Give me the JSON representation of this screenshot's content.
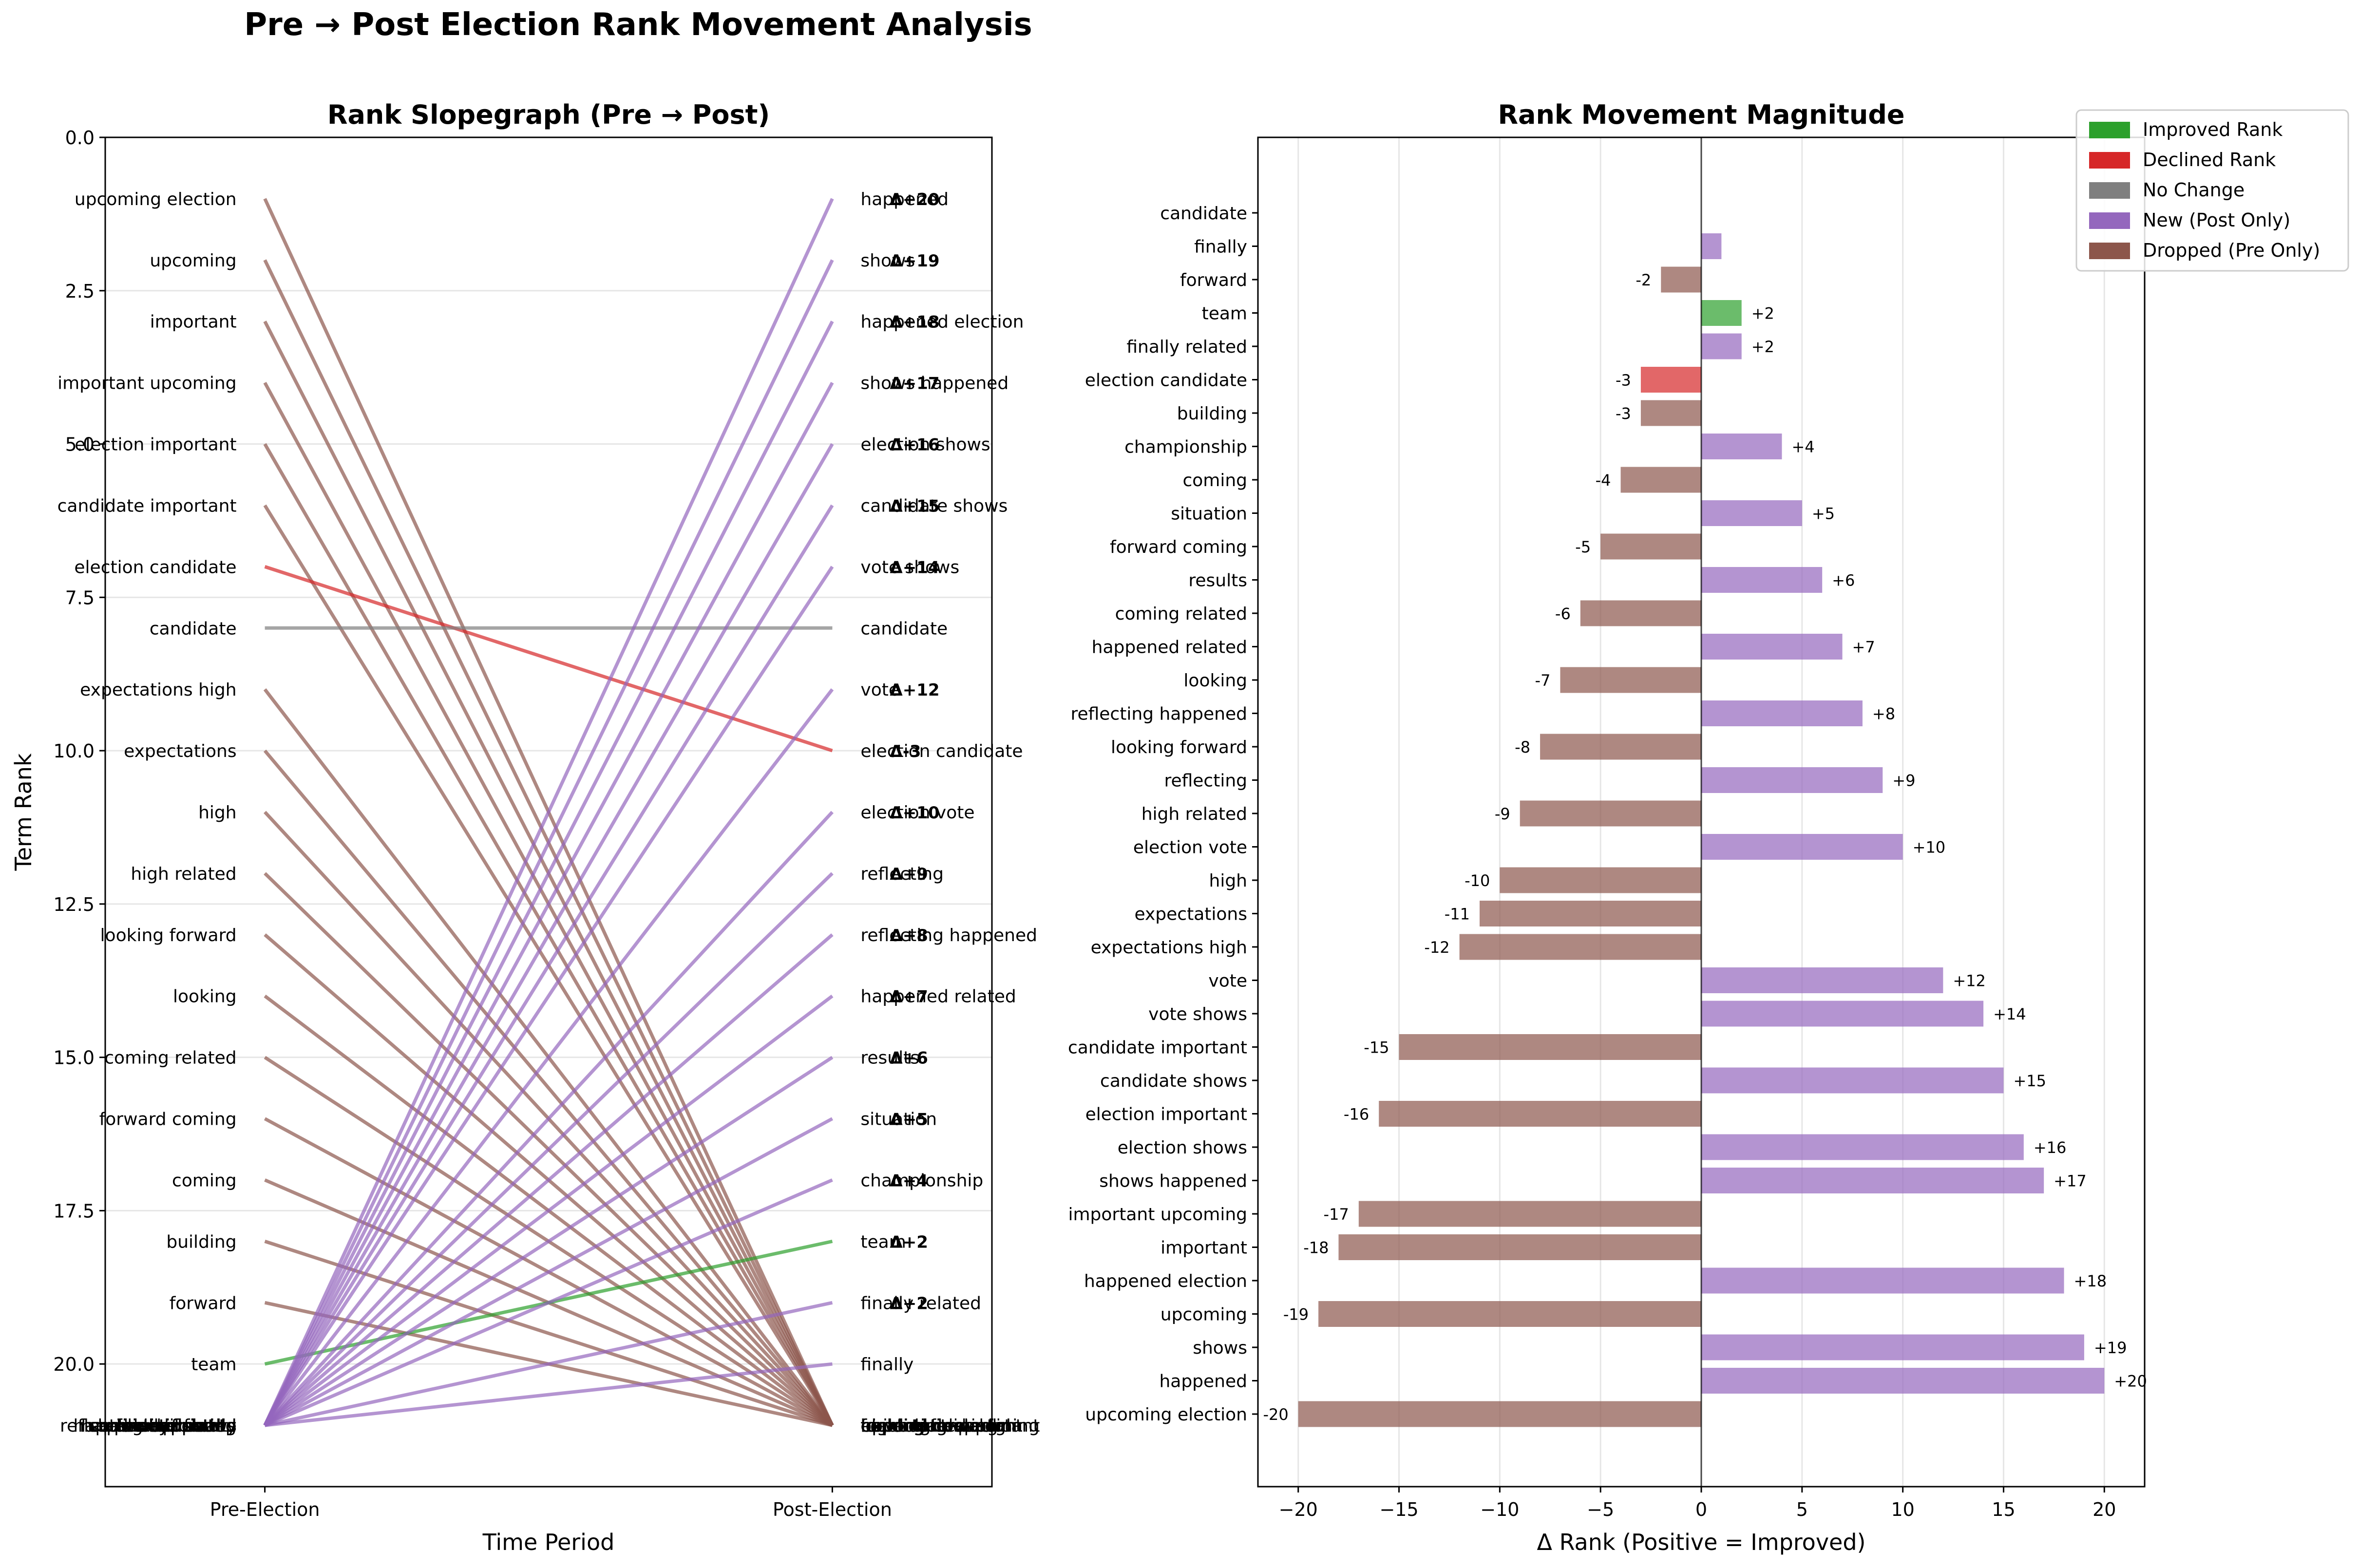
{
  "figure": {
    "title": "Pre → Post Election Rank Movement Analysis"
  },
  "colors": {
    "improved": "#2ca02c",
    "declined": "#d62728",
    "no_change": "#7f7f7f",
    "new": "#9467bd",
    "dropped": "#8c564b",
    "grid": "#e6e6e6"
  },
  "legend": {
    "placement": "top-right",
    "items": [
      {
        "key": "improved",
        "label": "Improved Rank"
      },
      {
        "key": "declined",
        "label": "Declined Rank"
      },
      {
        "key": "no_change",
        "label": "No Change"
      },
      {
        "key": "new",
        "label": "New (Post Only)"
      },
      {
        "key": "dropped",
        "label": "Dropped (Pre Only)"
      }
    ]
  },
  "chart_data": [
    {
      "type": "line",
      "subtype": "slopegraph",
      "title": "Rank Slopegraph (Pre → Post)",
      "xlabel": "Time Period",
      "ylabel": "Term Rank",
      "x_categories": [
        "Pre-Election",
        "Post-Election"
      ],
      "ylim": [
        22,
        0
      ],
      "y_ticks": [
        "0.0",
        "2.5",
        "5.0",
        "7.5",
        "10.0",
        "12.5",
        "15.0",
        "17.5",
        "20.0"
      ],
      "grid": "horizontal",
      "missing_rank": 21,
      "terms": [
        {
          "term": "upcoming election",
          "pre": 1,
          "post": null,
          "status": "dropped"
        },
        {
          "term": "upcoming",
          "pre": 2,
          "post": null,
          "status": "dropped"
        },
        {
          "term": "important",
          "pre": 3,
          "post": null,
          "status": "dropped"
        },
        {
          "term": "important upcoming",
          "pre": 4,
          "post": null,
          "status": "dropped"
        },
        {
          "term": "election important",
          "pre": 5,
          "post": null,
          "status": "dropped"
        },
        {
          "term": "candidate important",
          "pre": 6,
          "post": null,
          "status": "dropped"
        },
        {
          "term": "election candidate",
          "pre": 7,
          "post": 10,
          "status": "declined",
          "delta_label": "Δ-3"
        },
        {
          "term": "candidate",
          "pre": 8,
          "post": 8,
          "status": "no_change"
        },
        {
          "term": "expectations high",
          "pre": 9,
          "post": null,
          "status": "dropped"
        },
        {
          "term": "expectations",
          "pre": 10,
          "post": null,
          "status": "dropped"
        },
        {
          "term": "high",
          "pre": 11,
          "post": null,
          "status": "dropped"
        },
        {
          "term": "high related",
          "pre": 12,
          "post": null,
          "status": "dropped"
        },
        {
          "term": "looking forward",
          "pre": 13,
          "post": null,
          "status": "dropped"
        },
        {
          "term": "looking",
          "pre": 14,
          "post": null,
          "status": "dropped"
        },
        {
          "term": "coming related",
          "pre": 15,
          "post": null,
          "status": "dropped"
        },
        {
          "term": "forward coming",
          "pre": 16,
          "post": null,
          "status": "dropped"
        },
        {
          "term": "coming",
          "pre": 17,
          "post": null,
          "status": "dropped"
        },
        {
          "term": "building",
          "pre": 18,
          "post": null,
          "status": "dropped"
        },
        {
          "term": "forward",
          "pre": 19,
          "post": null,
          "status": "dropped"
        },
        {
          "term": "team",
          "pre": 20,
          "post": 18,
          "status": "improved",
          "delta_label": "Δ+2"
        },
        {
          "term": "happened",
          "pre": null,
          "post": 1,
          "status": "new",
          "delta_label": "Δ+20"
        },
        {
          "term": "shows",
          "pre": null,
          "post": 2,
          "status": "new",
          "delta_label": "Δ+19"
        },
        {
          "term": "happened election",
          "pre": null,
          "post": 3,
          "status": "new",
          "delta_label": "Δ+18"
        },
        {
          "term": "shows happened",
          "pre": null,
          "post": 4,
          "status": "new",
          "delta_label": "Δ+17"
        },
        {
          "term": "election shows",
          "pre": null,
          "post": 5,
          "status": "new",
          "delta_label": "Δ+16"
        },
        {
          "term": "candidate shows",
          "pre": null,
          "post": 6,
          "status": "new",
          "delta_label": "Δ+15"
        },
        {
          "term": "vote shows",
          "pre": null,
          "post": 7,
          "status": "new",
          "delta_label": "Δ+14"
        },
        {
          "term": "vote",
          "pre": null,
          "post": 9,
          "status": "new",
          "delta_label": "Δ+12"
        },
        {
          "term": "election vote",
          "pre": null,
          "post": 11,
          "status": "new",
          "delta_label": "Δ+10"
        },
        {
          "term": "reflecting",
          "pre": null,
          "post": 12,
          "status": "new",
          "delta_label": "Δ+9"
        },
        {
          "term": "reflecting happened",
          "pre": null,
          "post": 13,
          "status": "new",
          "delta_label": "Δ+8"
        },
        {
          "term": "happened related",
          "pre": null,
          "post": 14,
          "status": "new",
          "delta_label": "Δ+7"
        },
        {
          "term": "results",
          "pre": null,
          "post": 15,
          "status": "new",
          "delta_label": "Δ+6"
        },
        {
          "term": "situation",
          "pre": null,
          "post": 16,
          "status": "new",
          "delta_label": "Δ+5"
        },
        {
          "term": "championship",
          "pre": null,
          "post": 17,
          "status": "new",
          "delta_label": "Δ+4"
        },
        {
          "term": "finally related",
          "pre": null,
          "post": 19,
          "status": "new",
          "delta_label": "Δ+2"
        },
        {
          "term": "finally",
          "pre": null,
          "post": 20,
          "status": "new"
        }
      ]
    },
    {
      "type": "bar",
      "orientation": "horizontal",
      "title": "Rank Movement Magnitude",
      "xlabel": "Δ Rank (Positive = Improved)",
      "ylabel": "",
      "xlim": [
        -22,
        22
      ],
      "x_ticks": [
        -20,
        -15,
        -10,
        -5,
        0,
        5,
        10,
        15,
        20
      ],
      "grid": "vertical",
      "categories": [
        "candidate",
        "finally",
        "forward",
        "team",
        "finally related",
        "election candidate",
        "building",
        "championship",
        "coming",
        "situation",
        "forward coming",
        "results",
        "coming related",
        "happened related",
        "looking",
        "reflecting happened",
        "looking forward",
        "reflecting",
        "high related",
        "election vote",
        "high",
        "expectations",
        "expectations high",
        "vote",
        "vote shows",
        "candidate important",
        "candidate shows",
        "election important",
        "election shows",
        "shows happened",
        "important upcoming",
        "important",
        "happened election",
        "upcoming",
        "shows",
        "happened",
        "upcoming election"
      ],
      "values": [
        0,
        1,
        -2,
        2,
        2,
        -3,
        -3,
        4,
        -4,
        5,
        -5,
        6,
        -6,
        7,
        -7,
        8,
        -8,
        9,
        -9,
        10,
        -10,
        -11,
        -12,
        12,
        14,
        -15,
        15,
        -16,
        16,
        17,
        -17,
        -18,
        18,
        -19,
        19,
        20,
        -20
      ],
      "statuses": [
        "no_change",
        "new",
        "dropped",
        "improved",
        "new",
        "declined",
        "dropped",
        "new",
        "dropped",
        "new",
        "dropped",
        "new",
        "dropped",
        "new",
        "dropped",
        "new",
        "dropped",
        "new",
        "dropped",
        "new",
        "dropped",
        "dropped",
        "dropped",
        "new",
        "new",
        "dropped",
        "new",
        "dropped",
        "new",
        "new",
        "dropped",
        "dropped",
        "new",
        "dropped",
        "new",
        "new",
        "dropped"
      ],
      "value_labels": [
        "",
        "",
        "-2",
        "+2",
        "+2",
        "-3",
        "-3",
        "+4",
        "-4",
        "+5",
        "-5",
        "+6",
        "-6",
        "+7",
        "-7",
        "+8",
        "-8",
        "+9",
        "-9",
        "+10",
        "-10",
        "-11",
        "-12",
        "+12",
        "+14",
        "-15",
        "+15",
        "-16",
        "+16",
        "+17",
        "-17",
        "-18",
        "+18",
        "-19",
        "+19",
        "+20",
        "-20"
      ]
    }
  ]
}
